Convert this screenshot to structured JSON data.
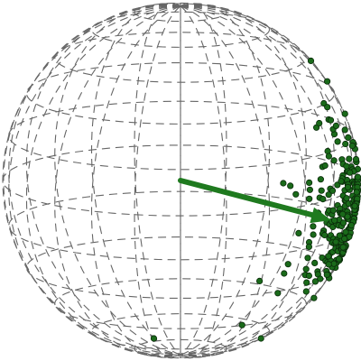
{
  "figure": {
    "type": "sphere-wireframe-with-points-and-vector",
    "wireframe_style": "dashed",
    "colors": {
      "wireframe": "#666666",
      "points_fill": "#1a6a1a",
      "points_stroke": "#0a2a0a",
      "vector": "#1f7a1f"
    }
  }
}
